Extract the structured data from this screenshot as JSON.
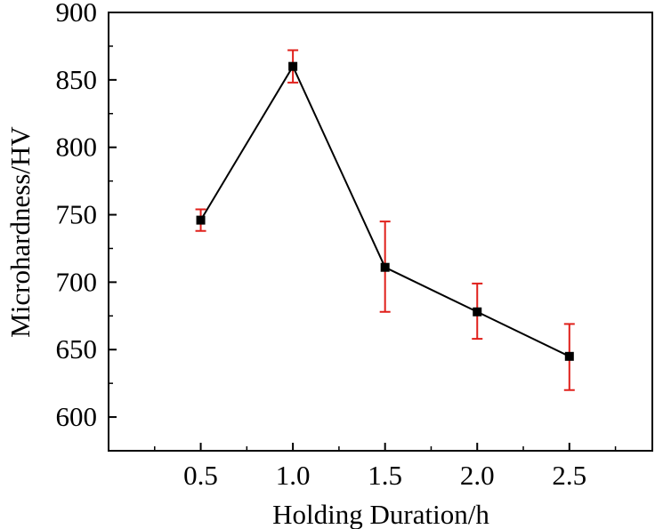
{
  "chart_data": {
    "type": "line",
    "title": "",
    "xlabel": "Holding Duration/h",
    "ylabel": "Microhardness/HV",
    "xlim": [
      0.0,
      2.95
    ],
    "ylim": [
      575,
      900
    ],
    "x_ticks": [
      "0.5",
      "1.0",
      "1.5",
      "2.0",
      "2.5"
    ],
    "y_ticks": [
      "600",
      "650",
      "700",
      "750",
      "800",
      "850",
      "900"
    ],
    "x_tick_values": [
      0.5,
      1.0,
      1.5,
      2.0,
      2.5
    ],
    "y_tick_values": [
      600,
      650,
      700,
      750,
      800,
      850,
      900
    ],
    "grid": false,
    "series": [
      {
        "x": [
          0.5,
          1.0,
          1.5,
          2.0,
          2.5
        ],
        "y": [
          746,
          860,
          711,
          678,
          645
        ],
        "error_low": [
          738,
          848,
          678,
          658,
          620
        ],
        "error_high": [
          754,
          872,
          745,
          699,
          669
        ],
        "line_color": "#000000",
        "marker_color": "#000000",
        "error_color": "#e0201b",
        "marker": "square"
      }
    ]
  }
}
